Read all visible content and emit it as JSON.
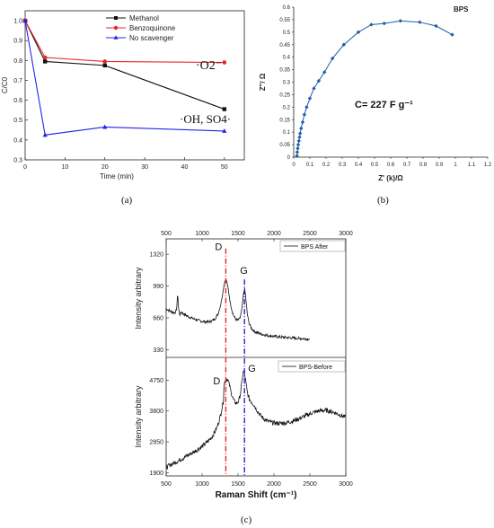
{
  "figure": {
    "caption_a": "(a)",
    "caption_b": "(b)",
    "caption_c": "(c)"
  },
  "chart_data": [
    {
      "id": "a",
      "type": "line",
      "title": "",
      "xlabel": "Time (min)",
      "ylabel": "C/C0",
      "xlim": [
        0,
        55
      ],
      "ylim": [
        0.3,
        1.05
      ],
      "xticks": [
        0,
        10,
        20,
        30,
        40,
        50
      ],
      "yticks": [
        0.3,
        0.4,
        0.5,
        0.6,
        0.7,
        0.8,
        0.9,
        1.0
      ],
      "legend_position": "top-center",
      "series": [
        {
          "name": "Methanol",
          "color": "#111111",
          "marker": "square",
          "x": [
            0,
            5,
            20,
            50
          ],
          "y": [
            1.0,
            0.795,
            0.775,
            0.555
          ]
        },
        {
          "name": "Benzoquinone",
          "color": "#e8262b",
          "marker": "circle",
          "x": [
            0,
            5,
            20,
            50
          ],
          "y": [
            1.0,
            0.815,
            0.795,
            0.79
          ]
        },
        {
          "name": "No scavenger",
          "color": "#2424e8",
          "marker": "triangle",
          "x": [
            0,
            5,
            20,
            50
          ],
          "y": [
            1.0,
            0.425,
            0.465,
            0.445
          ]
        }
      ],
      "annotations": [
        {
          "text": "·O2⁻",
          "x": 46,
          "y": 0.78
        },
        {
          "text": "·OH, SO4·",
          "x": 53,
          "y": 0.55
        }
      ]
    },
    {
      "id": "b",
      "type": "scatter",
      "title": "BPS",
      "xlabel": "Z' (k)/Ω",
      "ylabel": "Z''/ Ω",
      "xlim": [
        0,
        1.2
      ],
      "ylim": [
        0,
        0.6
      ],
      "xticks": [
        0,
        0.1,
        0.2,
        0.3,
        0.4,
        0.5,
        0.6,
        0.7,
        0.8,
        0.9,
        1,
        1.1,
        1.2
      ],
      "yticks": [
        0,
        0.05,
        0.1,
        0.15,
        0.2,
        0.25,
        0.3,
        0.35,
        0.4,
        0.45,
        0.5,
        0.55,
        0.6
      ],
      "color": "#1f5fa8",
      "annotation": "C= 227 F g⁻¹",
      "x": [
        0.02,
        0.022,
        0.025,
        0.028,
        0.032,
        0.036,
        0.04,
        0.046,
        0.055,
        0.066,
        0.08,
        0.1,
        0.125,
        0.155,
        0.19,
        0.24,
        0.31,
        0.4,
        0.48,
        0.56,
        0.66,
        0.78,
        0.88,
        0.98
      ],
      "y": [
        0.005,
        0.02,
        0.035,
        0.05,
        0.065,
        0.08,
        0.095,
        0.115,
        0.14,
        0.17,
        0.2,
        0.235,
        0.275,
        0.305,
        0.34,
        0.395,
        0.45,
        0.5,
        0.53,
        0.535,
        0.545,
        0.54,
        0.525,
        0.49
      ]
    },
    {
      "id": "c-top",
      "type": "line",
      "xlabel": "",
      "ylabel": "Intensity arbitrary",
      "xlim": [
        500,
        3000
      ],
      "ylim": [
        250,
        1480
      ],
      "xticks": [
        500,
        1000,
        1500,
        2000,
        2500,
        3000
      ],
      "yticks": [
        330,
        660,
        990,
        1320
      ],
      "legend": "BPS After",
      "legend_position": "top-right",
      "peaks": [
        {
          "label": "D",
          "x": 1330,
          "y": 1380
        },
        {
          "label": "G",
          "x": 1590,
          "y": 1060
        }
      ]
    },
    {
      "id": "c-bottom",
      "type": "line",
      "xlabel": "Raman Shift (cm⁻¹)",
      "ylabel": "Intensity arbitrary",
      "xlim": [
        500,
        3000
      ],
      "ylim": [
        1800,
        5450
      ],
      "xticks": [
        500,
        1000,
        1500,
        2000,
        2500,
        3000
      ],
      "yticks": [
        1900,
        2850,
        3800,
        4750
      ],
      "legend": "BPS-Before",
      "legend_position": "top-right",
      "peaks": [
        {
          "label": "D",
          "x": 1340,
          "y": 4700
        },
        {
          "label": "G",
          "x": 1580,
          "y": 4950
        }
      ]
    }
  ]
}
